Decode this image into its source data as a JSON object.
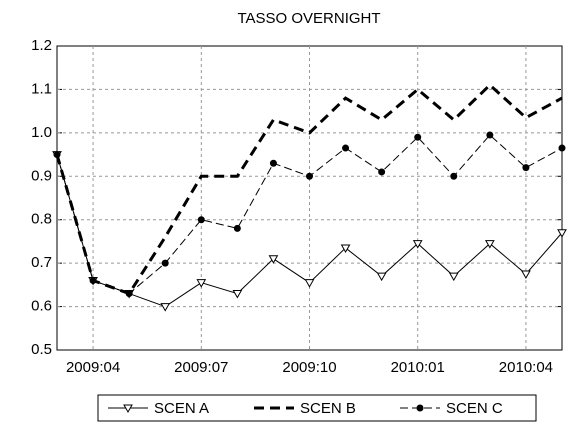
{
  "chart_data": {
    "type": "line",
    "title": "TASSO OVERNIGHT",
    "categories": [
      null,
      "2009:04",
      null,
      null,
      "2009:07",
      null,
      null,
      "2009:10",
      null,
      null,
      "2010:01",
      null,
      null,
      "2010:04",
      null
    ],
    "series": [
      {
        "name": "SCEN A",
        "color": "#000000",
        "dash": "solid",
        "width": 1,
        "marker": "triangle-down",
        "values": [
          0.95,
          0.66,
          0.63,
          0.6,
          0.655,
          0.63,
          0.71,
          0.655,
          0.735,
          0.67,
          0.745,
          0.67,
          0.745,
          0.675,
          0.77
        ]
      },
      {
        "name": "SCEN B",
        "color": "#000000",
        "dash": "long",
        "width": 3,
        "marker": "none",
        "values": [
          0.95,
          0.66,
          0.63,
          0.76,
          0.9,
          0.9,
          1.03,
          1.0,
          1.08,
          1.03,
          1.1,
          1.03,
          1.11,
          1.035,
          1.08
        ]
      },
      {
        "name": "SCEN C",
        "color": "#000000",
        "dash": "medium",
        "width": 1,
        "marker": "dot",
        "values": [
          0.95,
          0.66,
          0.63,
          0.7,
          0.8,
          0.78,
          0.93,
          0.9,
          0.965,
          0.91,
          0.99,
          0.9,
          0.995,
          0.92,
          0.965
        ]
      }
    ],
    "ylim": [
      0.5,
      1.2
    ],
    "yticks": [
      0.5,
      0.6,
      0.7,
      0.8,
      0.9,
      {
        "value": 1,
        "label": "1.0"
      },
      1.1,
      1.2
    ],
    "grid": true
  }
}
